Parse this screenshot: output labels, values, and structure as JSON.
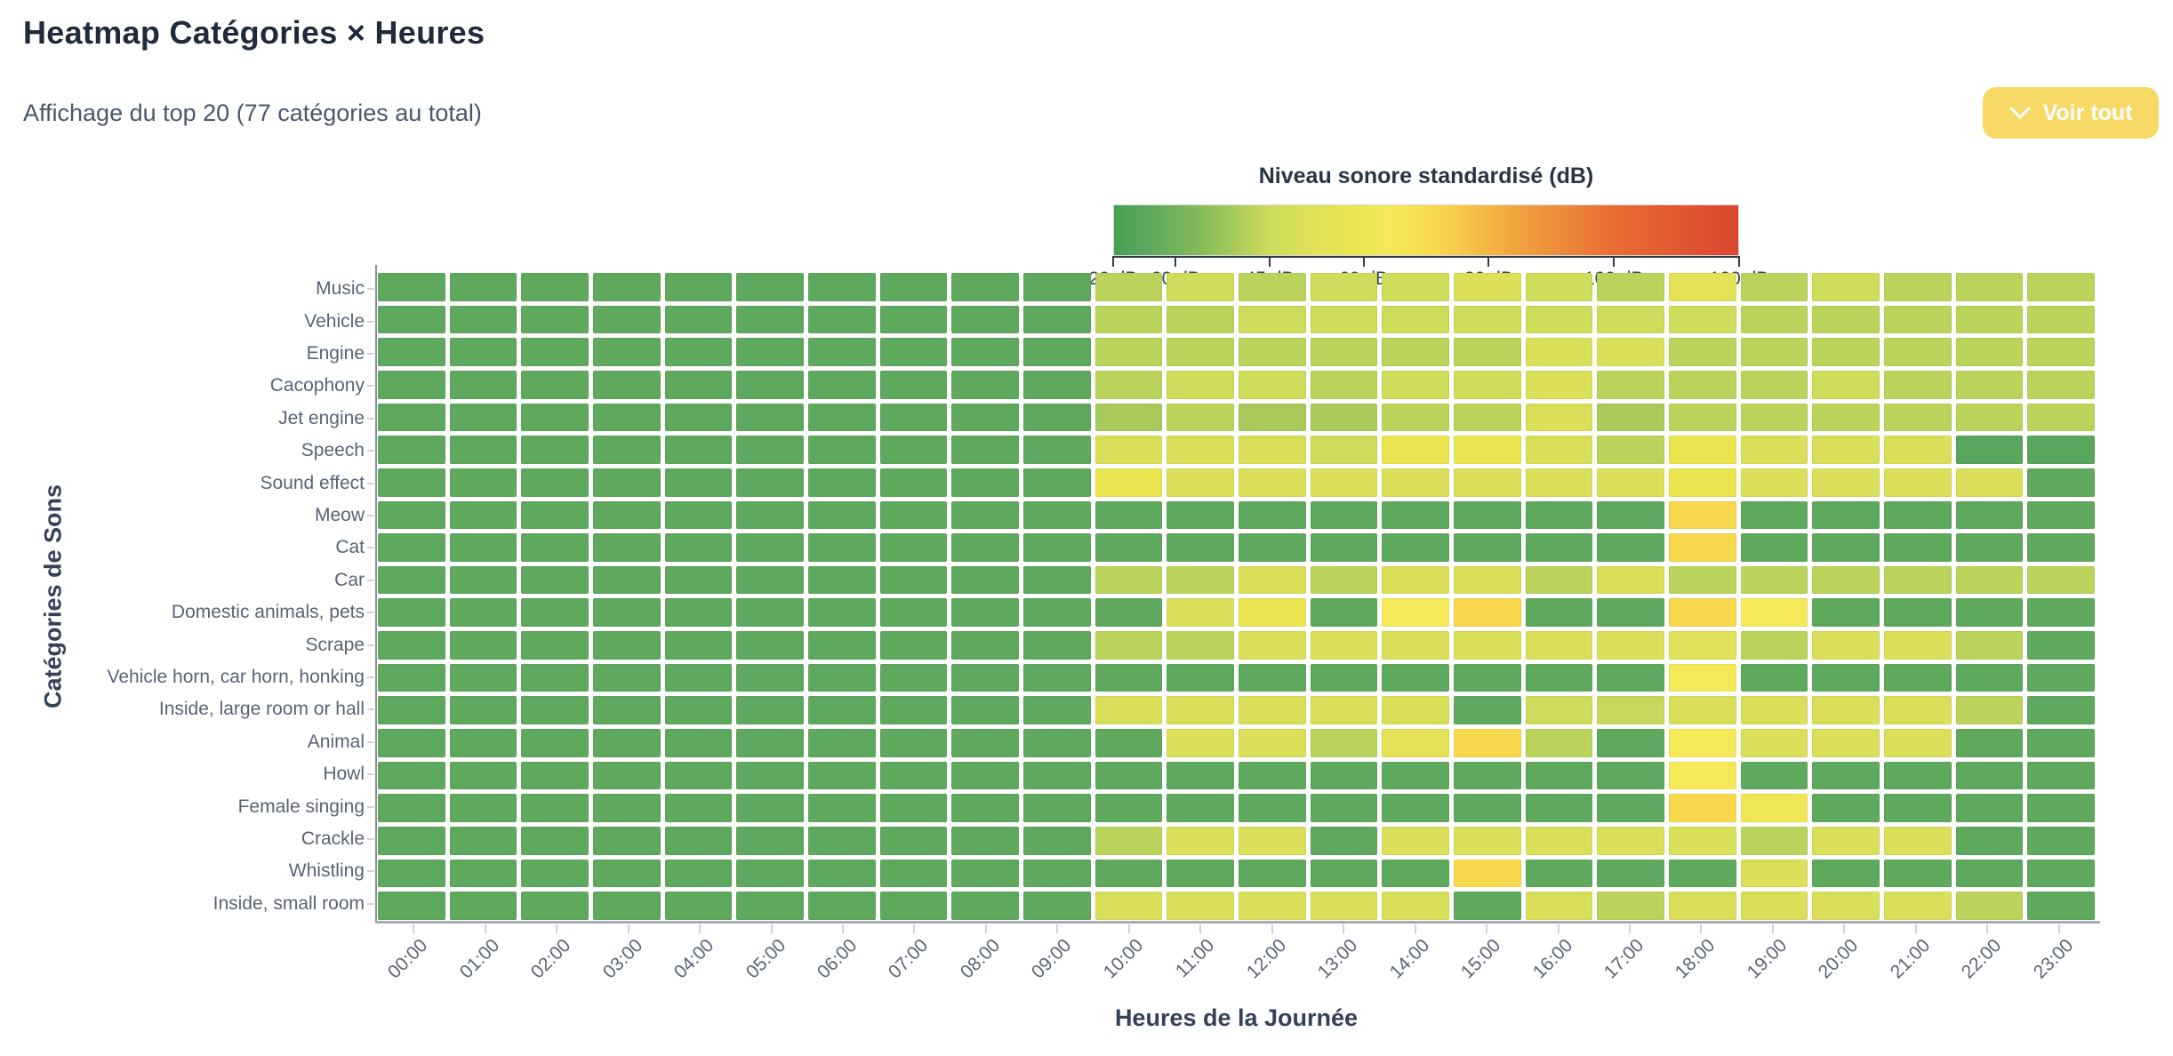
{
  "page": {
    "title": "Heatmap Catégories × Heures",
    "subtitle": "Affichage du top 20 (77 catégories au total)"
  },
  "controls": {
    "voir_tout_label": "Voir tout",
    "button_color": "#f7d966"
  },
  "legend": {
    "title": "Niveau sonore standardisé (dB)",
    "tick_labels": [
      "20 dB",
      "30 dB",
      "45 dB",
      "60 dB",
      "80 dB",
      "100 dB",
      "120 dB"
    ],
    "tick_values": [
      20,
      30,
      45,
      60,
      80,
      100,
      120
    ],
    "min": 20,
    "max": 120
  },
  "chart_data": {
    "type": "heatmap",
    "title": "Heatmap Catégories × Heures",
    "xlabel": "Heures de la Journée",
    "ylabel": "Catégories de Sons",
    "value_unit": "dB",
    "value_range": [
      20,
      120
    ],
    "x_categories": [
      "00:00",
      "01:00",
      "02:00",
      "03:00",
      "04:00",
      "05:00",
      "06:00",
      "07:00",
      "08:00",
      "09:00",
      "10:00",
      "11:00",
      "12:00",
      "13:00",
      "14:00",
      "15:00",
      "16:00",
      "17:00",
      "18:00",
      "19:00",
      "20:00",
      "21:00",
      "22:00",
      "23:00"
    ],
    "y_categories": [
      "Music",
      "Vehicle",
      "Engine",
      "Cacophony",
      "Jet engine",
      "Speech",
      "Sound effect",
      "Meow",
      "Cat",
      "Car",
      "Domestic animals, pets",
      "Scrape",
      "Vehicle horn, car horn, honking",
      "Inside, large room or hall",
      "Animal",
      "Howl",
      "Female singing",
      "Crackle",
      "Whistling",
      "Inside, small room"
    ],
    "values": [
      [
        26,
        26,
        26,
        26,
        26,
        26,
        26,
        26,
        26,
        26,
        42,
        45,
        42,
        45,
        45,
        50,
        45,
        42,
        54,
        42,
        45,
        42,
        42,
        42
      ],
      [
        26,
        26,
        26,
        26,
        26,
        26,
        26,
        26,
        26,
        26,
        42,
        42,
        45,
        45,
        45,
        45,
        45,
        45,
        45,
        42,
        42,
        42,
        42,
        42
      ],
      [
        26,
        26,
        26,
        26,
        26,
        26,
        26,
        26,
        26,
        26,
        42,
        42,
        42,
        42,
        42,
        42,
        50,
        50,
        42,
        42,
        42,
        42,
        42,
        42
      ],
      [
        26,
        26,
        26,
        26,
        26,
        26,
        26,
        26,
        26,
        26,
        42,
        45,
        45,
        42,
        45,
        45,
        50,
        42,
        42,
        42,
        45,
        42,
        42,
        42
      ],
      [
        26,
        26,
        26,
        26,
        26,
        26,
        26,
        26,
        26,
        26,
        39,
        42,
        39,
        39,
        42,
        42,
        50,
        39,
        42,
        42,
        42,
        42,
        42,
        42
      ],
      [
        26,
        26,
        26,
        26,
        26,
        26,
        26,
        26,
        26,
        26,
        50,
        50,
        50,
        45,
        58,
        58,
        50,
        42,
        58,
        50,
        50,
        50,
        24,
        24
      ],
      [
        26,
        26,
        26,
        26,
        26,
        26,
        26,
        26,
        26,
        26,
        58,
        50,
        50,
        50,
        50,
        50,
        50,
        50,
        58,
        50,
        50,
        50,
        50,
        26
      ],
      [
        26,
        26,
        26,
        26,
        26,
        26,
        26,
        26,
        26,
        26,
        26,
        26,
        26,
        26,
        26,
        26,
        26,
        26,
        72,
        26,
        26,
        26,
        26,
        26
      ],
      [
        26,
        26,
        26,
        26,
        26,
        26,
        26,
        26,
        26,
        26,
        26,
        26,
        26,
        26,
        26,
        26,
        26,
        26,
        72,
        26,
        26,
        26,
        26,
        26
      ],
      [
        26,
        26,
        26,
        26,
        26,
        26,
        26,
        26,
        26,
        26,
        42,
        42,
        50,
        42,
        50,
        50,
        42,
        50,
        42,
        42,
        42,
        42,
        42,
        42
      ],
      [
        26,
        26,
        26,
        26,
        26,
        26,
        26,
        26,
        26,
        26,
        26,
        50,
        58,
        26,
        64,
        72,
        26,
        26,
        72,
        64,
        26,
        26,
        26,
        26
      ],
      [
        26,
        26,
        26,
        26,
        26,
        26,
        26,
        26,
        26,
        26,
        42,
        42,
        50,
        50,
        50,
        50,
        50,
        50,
        52,
        42,
        50,
        50,
        42,
        26
      ],
      [
        26,
        26,
        26,
        26,
        26,
        26,
        26,
        26,
        26,
        26,
        26,
        26,
        26,
        26,
        26,
        26,
        26,
        26,
        64,
        26,
        26,
        26,
        26,
        26
      ],
      [
        26,
        26,
        26,
        26,
        26,
        26,
        26,
        26,
        26,
        26,
        50,
        50,
        50,
        50,
        50,
        26,
        45,
        44,
        50,
        50,
        50,
        50,
        42,
        26
      ],
      [
        26,
        26,
        26,
        26,
        26,
        26,
        26,
        26,
        26,
        26,
        26,
        50,
        50,
        42,
        54,
        72,
        42,
        26,
        64,
        50,
        50,
        50,
        26,
        26
      ],
      [
        26,
        26,
        26,
        26,
        26,
        26,
        26,
        26,
        26,
        26,
        26,
        26,
        26,
        26,
        26,
        26,
        26,
        26,
        64,
        26,
        26,
        26,
        26,
        26
      ],
      [
        26,
        26,
        26,
        26,
        26,
        26,
        26,
        26,
        26,
        26,
        26,
        26,
        26,
        26,
        26,
        26,
        26,
        26,
        72,
        61,
        26,
        26,
        26,
        26
      ],
      [
        26,
        26,
        26,
        26,
        26,
        26,
        26,
        26,
        26,
        26,
        42,
        50,
        50,
        26,
        50,
        50,
        50,
        50,
        50,
        42,
        50,
        50,
        26,
        26
      ],
      [
        26,
        26,
        26,
        26,
        26,
        26,
        26,
        26,
        26,
        26,
        26,
        26,
        26,
        26,
        26,
        72,
        26,
        26,
        26,
        50,
        26,
        26,
        26,
        26
      ],
      [
        26,
        26,
        26,
        26,
        26,
        26,
        26,
        26,
        26,
        26,
        50,
        50,
        50,
        50,
        50,
        26,
        50,
        42,
        50,
        50,
        50,
        50,
        42,
        26
      ]
    ],
    "colorscale": {
      "stops": [
        [
          20,
          "#46a153"
        ],
        [
          26,
          "#5fa95f"
        ],
        [
          34,
          "#86bc59"
        ],
        [
          45,
          "#cedb5b"
        ],
        [
          52,
          "#dfe159"
        ],
        [
          58,
          "#eae44f"
        ],
        [
          64,
          "#f5e95a"
        ],
        [
          72,
          "#f8d74d"
        ],
        [
          85,
          "#f0a23f"
        ],
        [
          100,
          "#e96c33"
        ],
        [
          120,
          "#db462e"
        ]
      ]
    },
    "legend_position": "top-right",
    "grid": false
  }
}
